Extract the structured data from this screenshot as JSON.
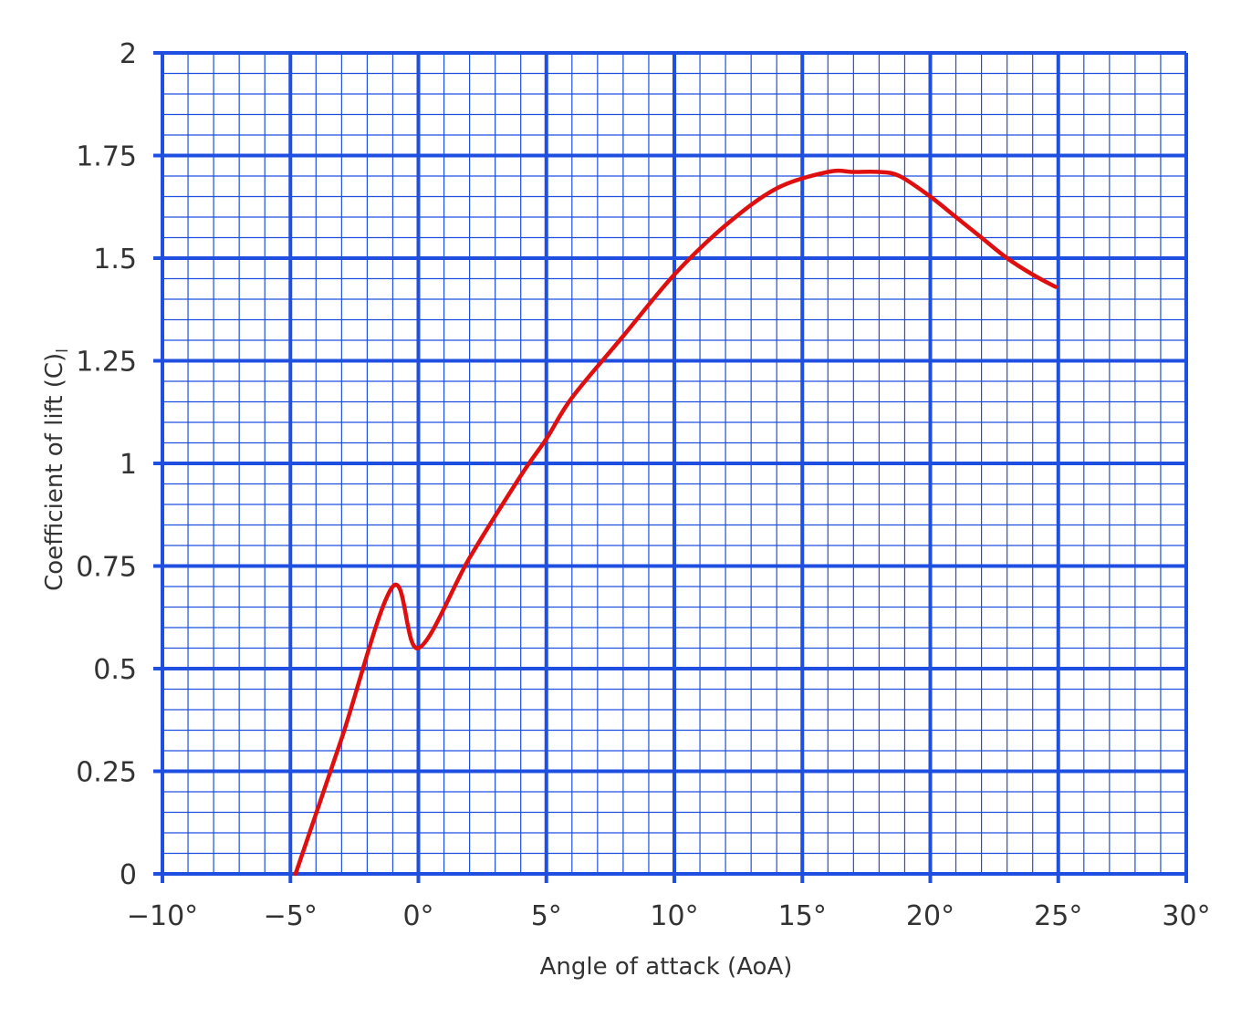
{
  "chart_data": {
    "type": "line",
    "xlabel": "Angle of attack (AoA)",
    "ylabel": "Coefficient of lift (C)",
    "ylabel_subscript": "l",
    "xlim": [
      -10,
      30
    ],
    "ylim": [
      0,
      2
    ],
    "x_ticks": [
      -10,
      -5,
      0,
      5,
      10,
      15,
      20,
      25,
      30
    ],
    "x_tick_labels": [
      "−10°",
      "−5°",
      "0°",
      "5°",
      "10°",
      "15°",
      "20°",
      "25°",
      "30°"
    ],
    "y_ticks": [
      0,
      0.25,
      0.5,
      0.75,
      1,
      1.25,
      1.5,
      1.75,
      2
    ],
    "y_tick_labels": [
      "0",
      "0.25",
      "0.5",
      "0.75",
      "1",
      "1.25",
      "1.5",
      "1.75",
      "2"
    ],
    "grid": true,
    "grid_color": "#1f4fe0",
    "line_color": "#e00f0f",
    "series": [
      {
        "x": [
          -4.8,
          -3,
          -1,
          0,
          2,
          4,
          5,
          6,
          8,
          10,
          12,
          14,
          16,
          17,
          18,
          18.8,
          20,
          21,
          22,
          23,
          24,
          24.9
        ],
        "y": [
          0.0,
          0.33,
          0.7,
          0.55,
          0.77,
          0.97,
          1.06,
          1.16,
          1.31,
          1.46,
          1.58,
          1.67,
          1.71,
          1.71,
          1.71,
          1.7,
          1.65,
          1.6,
          1.55,
          1.5,
          1.46,
          1.43
        ]
      }
    ]
  }
}
